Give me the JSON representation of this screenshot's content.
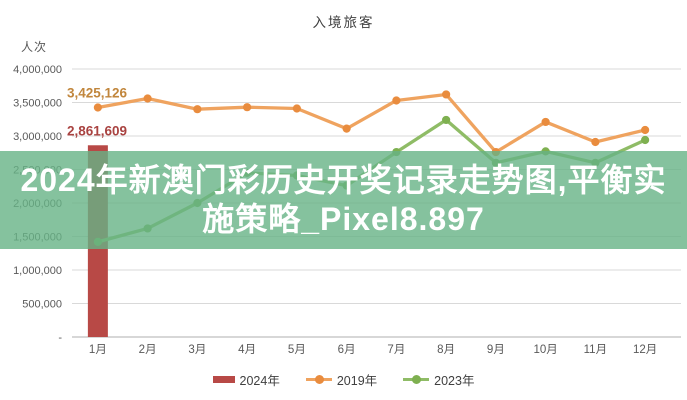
{
  "title": "入境旅客",
  "y_unit_label": "人次",
  "overlay": {
    "line1": "2024年新澳门彩历史开奖记录走势图,平衡实",
    "line2": "施策略_Pixel8.897",
    "bg_color": "#67B386",
    "bg_opacity": 0.8,
    "text_color": "#FFFFFF"
  },
  "legend": [
    {
      "label": "2024年",
      "type": "bar",
      "color": "#B84946",
      "marker": "#B84946"
    },
    {
      "label": "2019年",
      "type": "line",
      "color": "#EFA35F",
      "marker": "#E98C3E"
    },
    {
      "label": "2023年",
      "type": "line",
      "color": "#8FBC66",
      "marker": "#7EB050"
    }
  ],
  "chart_data": {
    "type": "bar",
    "subtype": "bar-line-combo",
    "title": "入境旅客",
    "xlabel": "",
    "ylabel": "人次",
    "ylim": [
      0,
      4000000
    ],
    "grid": true,
    "legend_position": "bottom",
    "categories": [
      "1月",
      "2月",
      "3月",
      "4月",
      "5月",
      "6月",
      "7月",
      "8月",
      "9月",
      "10月",
      "11月",
      "12月"
    ],
    "y_ticks": [
      {
        "label": "4,000,000",
        "value": 4000000
      },
      {
        "label": "3,500,000",
        "value": 3500000
      },
      {
        "label": "3,000,000",
        "value": 3000000
      },
      {
        "label": "2,500,000",
        "value": 2500000
      },
      {
        "label": "2,000,000",
        "value": 2000000
      },
      {
        "label": "1,500,000",
        "value": 1500000
      },
      {
        "label": "1,000,000",
        "value": 1000000
      },
      {
        "label": "500,000",
        "value": 500000
      },
      {
        "label": "-",
        "value": 0
      }
    ],
    "series": [
      {
        "name": "2024年",
        "type": "bar",
        "color": "#B84946",
        "marker": "#B84946",
        "values": [
          2861609,
          null,
          null,
          null,
          null,
          null,
          null,
          null,
          null,
          null,
          null,
          null
        ]
      },
      {
        "name": "2019年",
        "type": "line",
        "color": "#EFA35F",
        "marker": "#E98C3E",
        "values": [
          3425126,
          3560000,
          3400000,
          3430000,
          3410000,
          3110000,
          3530000,
          3620000,
          2760000,
          3210000,
          2910000,
          3090000
        ]
      },
      {
        "name": "2023年",
        "type": "line",
        "color": "#8FBC66",
        "marker": "#7EB050",
        "values": [
          1420000,
          1620000,
          2000000,
          2450000,
          2410000,
          2260000,
          2760000,
          3240000,
          2600000,
          2770000,
          2600000,
          2940000
        ]
      }
    ],
    "point_labels": [
      {
        "series": "2019年",
        "index": 0,
        "text": "3,425,126",
        "color": "#C1863C"
      },
      {
        "series": "2024年",
        "index": 0,
        "text": "2,861,609",
        "color": "#A94341"
      }
    ],
    "axis_color": "#BFBFBF",
    "grid_color": "#D9D9D9",
    "tick_label_color": "#595959"
  }
}
